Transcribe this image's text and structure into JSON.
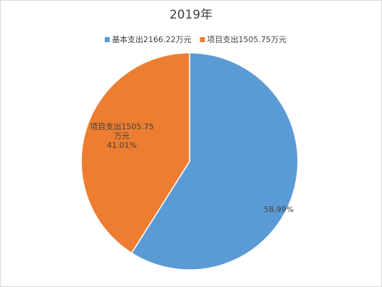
{
  "chart_data": {
    "type": "pie",
    "title": "2019年",
    "categories": [
      "基本支出2166.22万元",
      "项目支出1505.75万元"
    ],
    "values": [
      58.99,
      41.01
    ],
    "value_labels": [
      "58.99%",
      "41.01%"
    ],
    "colors": [
      "#5b9bd5",
      "#ed7d31"
    ],
    "legend": "top"
  }
}
